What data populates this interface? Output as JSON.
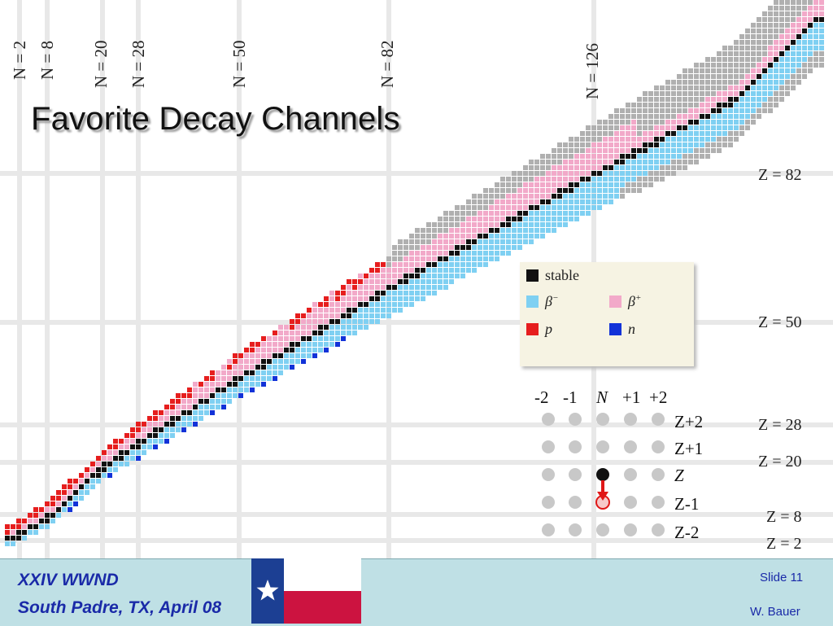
{
  "slide": {
    "title": "Favorite Decay Channels",
    "footer": {
      "conference": "XXIV WWND",
      "location": "South Padre, TX, April 08",
      "slide_number": "Slide 11",
      "author": "W. Bauer"
    }
  },
  "chart": {
    "neutron_magic_labels": [
      "N = 2",
      "N = 8",
      "N = 20",
      "N = 28",
      "N = 50",
      "N = 82",
      "N = 126"
    ],
    "proton_magic_labels": [
      "Z = 82",
      "Z = 50",
      "Z = 28",
      "Z = 20",
      "Z = 8",
      "Z = 2"
    ],
    "legend": {
      "stable": "stable",
      "beta_minus": "β",
      "beta_minus_sup": "−",
      "beta_plus": "β",
      "beta_plus_sup": "+",
      "proton": "p",
      "neutron": "n"
    },
    "colors": {
      "stable": "#111111",
      "beta_minus": "#7fd0f2",
      "beta_plus": "#f2a9c9",
      "proton": "#e61e1e",
      "neutron": "#1232d8",
      "unknown": "#b0b0b0"
    }
  },
  "inset": {
    "columns": [
      "-2",
      "-1",
      "N",
      "+1",
      "+2"
    ],
    "rows": [
      "Z+2",
      "Z+1",
      "Z",
      "Z-1",
      "Z-2"
    ]
  }
}
